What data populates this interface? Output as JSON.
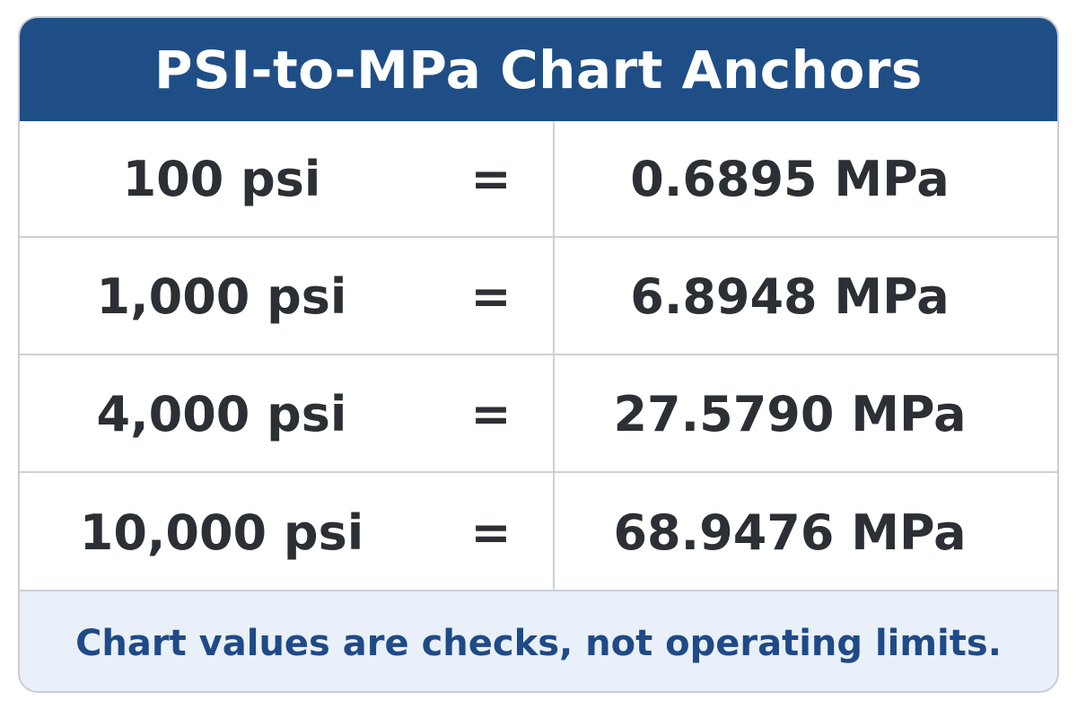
{
  "chart_data": {
    "type": "table",
    "title": "PSI-to-MPa Chart Anchors",
    "rows": [
      {
        "psi": "100 psi",
        "sep": "=",
        "mpa": "0.6895 MPa"
      },
      {
        "psi": "1,000 psi",
        "sep": "=",
        "mpa": "6.8948 MPa"
      },
      {
        "psi": "4,000 psi",
        "sep": "=",
        "mpa": "27.5790 MPa"
      },
      {
        "psi": "10,000 psi",
        "sep": "=",
        "mpa": "68.9476 MPa"
      }
    ],
    "footnote": "Chart values are checks, not operating limits."
  },
  "colors": {
    "header_bg": "#1f4e87",
    "footer_bg": "#e9f0fa",
    "footer_text": "#1f4a87"
  }
}
